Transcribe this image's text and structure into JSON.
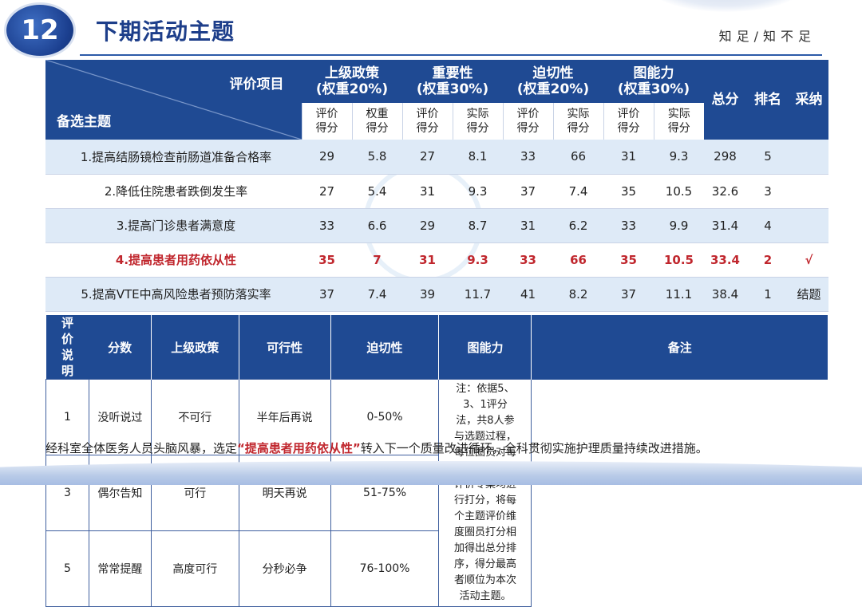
{
  "header": {
    "number": "12",
    "title": "下期活动主题",
    "motto": "知足/知不足"
  },
  "table": {
    "diag_top": "评价项目",
    "diag_bottom": "备选主题",
    "groups": [
      {
        "name": "上级政策",
        "weight": "(权重20%)"
      },
      {
        "name": "重要性",
        "weight": "(权重30%)"
      },
      {
        "name": "迫切性",
        "weight": "(权重20%)"
      },
      {
        "name": "图能力",
        "weight": "(权重30%)"
      }
    ],
    "sub_headers": [
      "评价得分",
      "权重得分",
      "评价得分",
      "实际得分",
      "评价得分",
      "实际得分",
      "评价得分",
      "实际得分"
    ],
    "total_label": "总分",
    "rank_label": "排名",
    "adopt_label": "采纳",
    "rows": [
      {
        "name": "1.提高结肠镜检查前肠道准备合格率",
        "scores": [
          "29",
          "5.8",
          "27",
          "8.1",
          "33",
          "66",
          "31",
          "9.3"
        ],
        "total": "298",
        "rank": "5",
        "adopt": ""
      },
      {
        "name": "2.降低住院患者跌倒发生率",
        "scores": [
          "27",
          "5.4",
          "31",
          "9.3",
          "37",
          "7.4",
          "35",
          "10.5"
        ],
        "total": "32.6",
        "rank": "3",
        "adopt": ""
      },
      {
        "name": "3.提高门诊患者满意度",
        "scores": [
          "33",
          "6.6",
          "29",
          "8.7",
          "31",
          "6.2",
          "33",
          "9.9"
        ],
        "total": "31.4",
        "rank": "4",
        "adopt": ""
      },
      {
        "name": "4.提高患者用药依从性",
        "scores": [
          "35",
          "7",
          "31",
          "9.3",
          "33",
          "66",
          "35",
          "10.5"
        ],
        "total": "33.4",
        "rank": "2",
        "adopt": "√"
      },
      {
        "name": "5.提高VTE中高风险患者预防落实率",
        "scores": [
          "37",
          "7.4",
          "39",
          "11.7",
          "41",
          "8.2",
          "37",
          "11.1"
        ],
        "total": "38.4",
        "rank": "1",
        "adopt": "结题"
      }
    ]
  },
  "eval": {
    "side_label": "评价说明",
    "headers": [
      "分数",
      "上级政策",
      "可行性",
      "迫切性",
      "图能力",
      "备注"
    ],
    "rows": [
      [
        "1",
        "没听说过",
        "不可行",
        "半年后再说",
        "0-50%"
      ],
      [
        "3",
        "偶尔告知",
        "可行",
        "明天再说",
        "51-75%"
      ],
      [
        "5",
        "常常提醒",
        "高度可行",
        "分秒必争",
        "76-100%"
      ]
    ],
    "note": "注：依据5、3、1评分法，共8人参与选题过程，每位圈员对每一主题，每一评价专案均进行打分，将每个主题评价维度圈员打分相加得出总分排序，得分最高者顺位为本次活动主题。"
  },
  "conclusion": {
    "before": "经科室全体医务人员头脑风暴，选定",
    "highlight": "“提高患者用药依从性”",
    "after": "转入下一个质量改进循环，全科贯彻实施护理质量持续改进措施。"
  },
  "colors": {
    "primary": "#1f4a93",
    "highlight": "#c0262d",
    "row_alt": "#deeaf7"
  }
}
